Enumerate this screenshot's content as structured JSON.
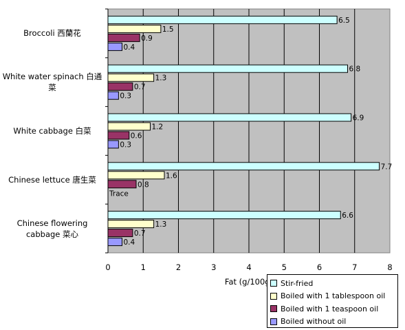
{
  "chart_data": {
    "type": "bar",
    "orientation": "horizontal",
    "categories": [
      "Broccoli 西蘭花",
      "White water spinach 白通菜",
      "White cabbage 白菜",
      "Chinese lettuce 唐生菜",
      "Chinese flowering cabbage 菜心"
    ],
    "series": [
      {
        "name": "Stir-fried",
        "color": "#ccffff",
        "values": [
          6.5,
          6.8,
          6.9,
          7.7,
          6.6
        ],
        "labels": [
          "6.5",
          "6.8",
          "6.9",
          "7.7",
          "6.6"
        ]
      },
      {
        "name": "Boiled with 1 tablespoon oil",
        "color": "#ffffcc",
        "values": [
          1.5,
          1.3,
          1.2,
          1.6,
          1.3
        ],
        "labels": [
          "1.5",
          "1.3",
          "1.2",
          "1.6",
          "1.3"
        ]
      },
      {
        "name": "Boiled with 1 teaspoon oil",
        "color": "#993366",
        "values": [
          0.9,
          0.7,
          0.6,
          0.8,
          0.7
        ],
        "labels": [
          "0.9",
          "0.7",
          "0.6",
          "0.8",
          "0.7"
        ]
      },
      {
        "name": "Boiled without oil",
        "color": "#9999ff",
        "values": [
          0.4,
          0.3,
          0.3,
          0,
          0.4
        ],
        "labels": [
          "0.4",
          "0.3",
          "0.3",
          "Trace",
          "0.4"
        ]
      }
    ],
    "xlabel": "Fat (g/100g)",
    "xlim": [
      0,
      8
    ],
    "xticks": [
      "0",
      "1",
      "2",
      "3",
      "4",
      "5",
      "6",
      "7",
      "8"
    ],
    "grid": true,
    "legend_position": "bottom-right",
    "plot_background": "#c0c0c0"
  }
}
